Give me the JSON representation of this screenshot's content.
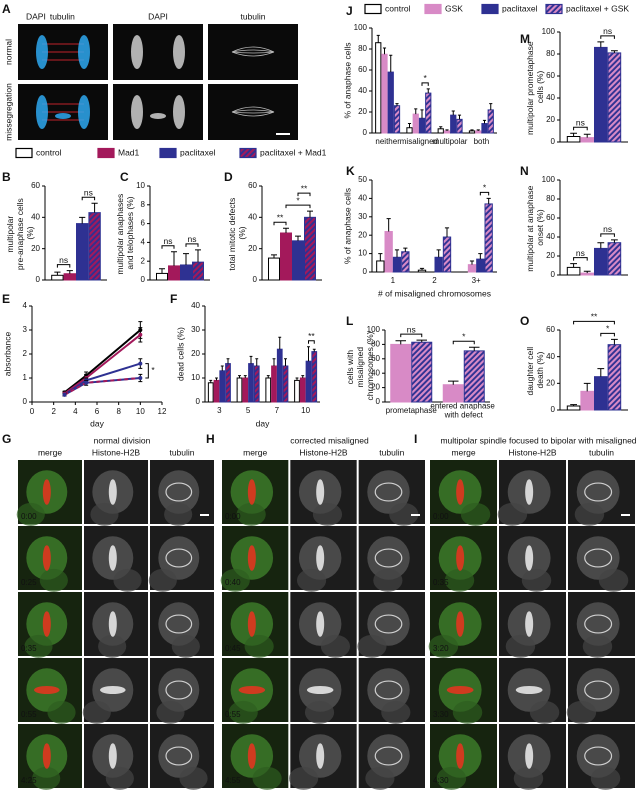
{
  "figure_A": {
    "label": "A",
    "overlay": [
      {
        "text": "DAPI",
        "color": "#2ea8f0"
      },
      {
        "text": "tubulin",
        "color": "#e8202a"
      }
    ],
    "columns": [
      "DAPI",
      "tubulin"
    ],
    "rows": [
      "normal",
      "missegregation"
    ]
  },
  "legend_1": {
    "entries": [
      {
        "name": "control",
        "color": "#ffffff",
        "edge": "#000000"
      },
      {
        "name": "Mad1",
        "color": "#a3195b"
      },
      {
        "name": "paclitaxel",
        "color": "#2e3192"
      },
      {
        "name": "paclitaxel + Mad1",
        "color": "#2e3192",
        "hatch": "#a3195b"
      }
    ]
  },
  "legend_2": {
    "entries": [
      {
        "name": "control",
        "color": "#ffffff",
        "edge": "#000000"
      },
      {
        "name": "GSK",
        "color": "#d88ac6"
      },
      {
        "name": "paclitaxel",
        "color": "#2e3192"
      },
      {
        "name": "paclitaxel + GSK",
        "color": "#2e3192",
        "hatch": "#d88ac6"
      }
    ]
  },
  "chart_data": [
    {
      "label": "B",
      "type": "bar",
      "ylabel": "multipolar pre-anaphase cells (%)",
      "categories": [
        null
      ],
      "ylim": [
        0,
        60
      ],
      "yticks": [
        0,
        20,
        40,
        60
      ],
      "series": [
        {
          "color": "#ffffff",
          "edge": "#000000",
          "values": [
            3
          ],
          "errors": [
            2
          ]
        },
        {
          "color": "#a3195b",
          "values": [
            4
          ],
          "errors": [
            2
          ]
        },
        {
          "color": "#2e3192",
          "values": [
            36
          ],
          "errors": [
            4
          ]
        },
        {
          "color": "#2e3192",
          "hatch": "#a3195b",
          "values": [
            43
          ],
          "errors": [
            6
          ]
        }
      ],
      "brackets": [
        {
          "text": "ns",
          "from": [
            0,
            0
          ],
          "to": [
            0,
            1
          ]
        },
        {
          "text": "ns",
          "from": [
            0,
            2
          ],
          "to": [
            0,
            3
          ]
        }
      ]
    },
    {
      "label": "C",
      "type": "bar",
      "ylabel": "multipolar anaphases and telophases (%)",
      "categories": [
        null
      ],
      "ylim": [
        0,
        10
      ],
      "yticks": [
        0,
        2,
        4,
        6,
        8,
        10
      ],
      "series": [
        {
          "color": "#ffffff",
          "edge": "#000000",
          "values": [
            0.7
          ],
          "errors": [
            0.5
          ]
        },
        {
          "color": "#a3195b",
          "values": [
            1.5
          ],
          "errors": [
            1.5
          ]
        },
        {
          "color": "#2e3192",
          "values": [
            1.6
          ],
          "errors": [
            1.2
          ]
        },
        {
          "color": "#2e3192",
          "hatch": "#a3195b",
          "values": [
            1.9
          ],
          "errors": [
            1.3
          ]
        }
      ],
      "brackets": [
        {
          "text": "ns",
          "from": [
            0,
            0
          ],
          "to": [
            0,
            1
          ]
        },
        {
          "text": "ns",
          "from": [
            0,
            2
          ],
          "to": [
            0,
            3
          ]
        }
      ]
    },
    {
      "label": "D",
      "type": "bar",
      "ylabel": "total mitotic defects (%)",
      "categories": [
        null
      ],
      "ylim": [
        0,
        60
      ],
      "yticks": [
        0,
        20,
        40,
        60
      ],
      "series": [
        {
          "color": "#ffffff",
          "edge": "#000000",
          "values": [
            14
          ],
          "errors": [
            2
          ]
        },
        {
          "color": "#a3195b",
          "values": [
            30
          ],
          "errors": [
            3
          ]
        },
        {
          "color": "#2e3192",
          "values": [
            25
          ],
          "errors": [
            3
          ]
        },
        {
          "color": "#2e3192",
          "hatch": "#a3195b",
          "values": [
            40
          ],
          "errors": [
            4
          ]
        }
      ],
      "brackets": [
        {
          "text": "**",
          "from": [
            0,
            0
          ],
          "to": [
            0,
            1
          ]
        },
        {
          "text": "*",
          "from": [
            0,
            1
          ],
          "to": [
            0,
            3
          ]
        },
        {
          "text": "**",
          "from": [
            0,
            2
          ],
          "to": [
            0,
            3
          ]
        }
      ]
    },
    {
      "label": "E",
      "type": "line",
      "ylabel": "absorbance",
      "xlabel": "day",
      "x": [
        3,
        5,
        10
      ],
      "xlim": [
        0,
        12
      ],
      "xticks": [
        0,
        2,
        4,
        6,
        8,
        10,
        12
      ],
      "ylim": [
        0,
        4
      ],
      "yticks": [
        0,
        1,
        2,
        3,
        4
      ],
      "series": [
        {
          "color": "#000000",
          "values": [
            0.4,
            1.1,
            3.0
          ],
          "errors": [
            0.05,
            0.15,
            0.35
          ]
        },
        {
          "color": "#a3195b",
          "values": [
            0.35,
            1.0,
            2.8
          ],
          "errors": [
            0.05,
            0.15,
            0.3
          ]
        },
        {
          "color": "#2e3192",
          "values": [
            0.3,
            0.9,
            1.6
          ],
          "errors": [
            0.05,
            0.1,
            0.2
          ]
        },
        {
          "color": "#2e3192",
          "hatch": "#a3195b",
          "values": [
            0.3,
            0.8,
            1.0
          ],
          "errors": [
            0.05,
            0.1,
            0.15
          ]
        }
      ],
      "brackets": [
        {
          "text": "*",
          "from": [
            2,
            2
          ],
          "to": [
            2,
            3
          ]
        }
      ]
    },
    {
      "label": "F",
      "type": "bar",
      "ylabel": "dead cells (%)",
      "xlabel": "day",
      "categories": [
        "3",
        "5",
        "7",
        "10"
      ],
      "ylim": [
        0,
        40
      ],
      "yticks": [
        0,
        10,
        20,
        30,
        40
      ],
      "series": [
        {
          "color": "#ffffff",
          "edge": "#000000",
          "values": [
            8,
            10,
            10,
            9
          ],
          "errors": [
            1,
            1,
            1,
            1
          ]
        },
        {
          "color": "#a3195b",
          "values": [
            9,
            10,
            15,
            10
          ],
          "errors": [
            1,
            1,
            3,
            1
          ]
        },
        {
          "color": "#2e3192",
          "values": [
            13,
            16,
            22,
            17
          ],
          "errors": [
            2,
            3,
            5,
            6
          ]
        },
        {
          "color": "#2e3192",
          "hatch": "#a3195b",
          "values": [
            16,
            15,
            15,
            21
          ],
          "errors": [
            2,
            3,
            3,
            1
          ]
        }
      ],
      "brackets": [
        {
          "text": "**",
          "from": [
            3,
            2
          ],
          "to": [
            3,
            3
          ]
        }
      ]
    },
    {
      "label": "J",
      "type": "bar",
      "ylabel": "% of anaphase cells",
      "categories": [
        "neither",
        "misaligned",
        "multipolar",
        "both"
      ],
      "ylim": [
        0,
        100
      ],
      "yticks": [
        0,
        20,
        40,
        60,
        80,
        100
      ],
      "series": [
        {
          "color": "#ffffff",
          "edge": "#000000",
          "values": [
            86,
            5,
            4,
            2
          ],
          "errors": [
            7,
            4,
            2,
            1
          ]
        },
        {
          "color": "#d88ac6",
          "values": [
            75,
            18,
            2,
            2
          ],
          "errors": [
            6,
            5,
            1,
            1
          ]
        },
        {
          "color": "#2e3192",
          "values": [
            58,
            14,
            17,
            9
          ],
          "errors": [
            16,
            8,
            4,
            3
          ]
        },
        {
          "color": "#2e3192",
          "hatch": "#d88ac6",
          "values": [
            26,
            38,
            13,
            22
          ],
          "errors": [
            2,
            4,
            4,
            6
          ]
        }
      ],
      "brackets": [
        {
          "text": "*",
          "from": [
            1,
            2
          ],
          "to": [
            1,
            3
          ]
        }
      ]
    },
    {
      "label": "K",
      "type": "bar",
      "ylabel": "% of anaphase cells",
      "xlabel": "# of misaligned chromosomes",
      "categories": [
        "1",
        "2",
        "3+"
      ],
      "ylim": [
        0,
        50
      ],
      "yticks": [
        0,
        10,
        20,
        30,
        40,
        50
      ],
      "series": [
        {
          "color": "#ffffff",
          "edge": "#000000",
          "values": [
            6,
            1,
            0
          ],
          "errors": [
            4,
            1,
            0
          ]
        },
        {
          "color": "#d88ac6",
          "values": [
            22,
            0,
            4
          ],
          "errors": [
            7,
            0,
            2
          ]
        },
        {
          "color": "#2e3192",
          "values": [
            8,
            8,
            7
          ],
          "errors": [
            4,
            4,
            3
          ]
        },
        {
          "color": "#2e3192",
          "hatch": "#d88ac6",
          "values": [
            11,
            19,
            37
          ],
          "errors": [
            2,
            5,
            3
          ]
        }
      ],
      "brackets": [
        {
          "text": "*",
          "from": [
            2,
            2
          ],
          "to": [
            2,
            3
          ]
        }
      ]
    },
    {
      "label": "L",
      "type": "bar",
      "ylabel": "cells with misaligned chromosomes (%)",
      "categories": [
        "prometaphase",
        "entered anaphase with defect"
      ],
      "ylim": [
        0,
        100
      ],
      "yticks": [
        0,
        20,
        40,
        60,
        80,
        100
      ],
      "series": [
        {
          "color": "#d88ac6",
          "values": [
            80,
            24
          ],
          "errors": [
            5,
            5
          ]
        },
        {
          "color": "#2e3192",
          "hatch": "#d88ac6",
          "values": [
            83,
            71
          ],
          "errors": [
            3,
            5
          ]
        }
      ],
      "brackets": [
        {
          "text": "ns",
          "from": [
            0,
            0
          ],
          "to": [
            0,
            1
          ]
        },
        {
          "text": "*",
          "from": [
            1,
            0
          ],
          "to": [
            1,
            1
          ]
        }
      ]
    },
    {
      "label": "M",
      "type": "bar",
      "ylabel": "multipolar prometaphase cells (%)",
      "categories": [
        null
      ],
      "ylim": [
        0,
        100
      ],
      "yticks": [
        0,
        20,
        40,
        60,
        80,
        100
      ],
      "series": [
        {
          "color": "#ffffff",
          "edge": "#000000",
          "values": [
            5
          ],
          "errors": [
            3
          ]
        },
        {
          "color": "#d88ac6",
          "values": [
            4
          ],
          "errors": [
            3
          ]
        },
        {
          "color": "#2e3192",
          "values": [
            86
          ],
          "errors": [
            5
          ]
        },
        {
          "color": "#2e3192",
          "hatch": "#d88ac6",
          "values": [
            81
          ],
          "errors": [
            2
          ]
        }
      ],
      "brackets": [
        {
          "text": "ns",
          "from": [
            0,
            0
          ],
          "to": [
            0,
            1
          ]
        },
        {
          "text": "ns",
          "from": [
            0,
            2
          ],
          "to": [
            0,
            3
          ]
        }
      ]
    },
    {
      "label": "N",
      "type": "bar",
      "ylabel": "multipolar at anaphase onset (%)",
      "categories": [
        null
      ],
      "ylim": [
        0,
        100
      ],
      "yticks": [
        0,
        20,
        40,
        60,
        80,
        100
      ],
      "series": [
        {
          "color": "#ffffff",
          "edge": "#000000",
          "values": [
            8
          ],
          "errors": [
            4
          ]
        },
        {
          "color": "#d88ac6",
          "values": [
            2
          ],
          "errors": [
            2
          ]
        },
        {
          "color": "#2e3192",
          "values": [
            28
          ],
          "errors": [
            6
          ]
        },
        {
          "color": "#2e3192",
          "hatch": "#d88ac6",
          "values": [
            34
          ],
          "errors": [
            3
          ]
        }
      ],
      "brackets": [
        {
          "text": "ns",
          "from": [
            0,
            0
          ],
          "to": [
            0,
            1
          ]
        },
        {
          "text": "ns",
          "from": [
            0,
            2
          ],
          "to": [
            0,
            3
          ]
        }
      ]
    },
    {
      "label": "O",
      "type": "bar",
      "ylabel": "daughter cell death (%)",
      "categories": [
        null
      ],
      "ylim": [
        0,
        60
      ],
      "yticks": [
        0,
        20,
        40,
        60
      ],
      "series": [
        {
          "color": "#ffffff",
          "edge": "#000000",
          "values": [
            3
          ],
          "errors": [
            1
          ]
        },
        {
          "color": "#d88ac6",
          "values": [
            14
          ],
          "errors": [
            6
          ]
        },
        {
          "color": "#2e3192",
          "values": [
            25
          ],
          "errors": [
            6
          ]
        },
        {
          "color": "#2e3192",
          "hatch": "#d88ac6",
          "values": [
            49
          ],
          "errors": [
            4
          ]
        }
      ],
      "brackets": [
        {
          "text": "*",
          "from": [
            0,
            2
          ],
          "to": [
            0,
            3
          ]
        },
        {
          "text": "**",
          "from": [
            0,
            0
          ],
          "to": [
            0,
            3
          ]
        }
      ]
    }
  ],
  "movies": [
    {
      "label": "G",
      "title": "normal division",
      "columns": [
        "merge",
        "Histone-H2B",
        "tubulin"
      ],
      "column_colors": [
        "#000000",
        "#e0201c",
        "#2ca02c"
      ],
      "times": [
        "0:00",
        "0:25",
        "0:35",
        "0:55",
        "4:25"
      ]
    },
    {
      "label": "H",
      "title": "corrected misaligned",
      "columns": [
        "merge",
        "Histone-H2B",
        "tubulin"
      ],
      "column_colors": [
        "#000000",
        "#e0201c",
        "#2ca02c"
      ],
      "times": [
        "0:00",
        "0:40",
        "0:45",
        "0:55",
        "4:55"
      ]
    },
    {
      "label": "I",
      "title": "multipolar spindle focused to bipolar with misaligned",
      "columns": [
        "merge",
        "Histone-H2B",
        "tubulin"
      ],
      "column_colors": [
        "#000000",
        "#e0201c",
        "#2ca02c"
      ],
      "times": [
        "0:00",
        "0:35",
        "3:20",
        "3:30",
        "4:30"
      ]
    }
  ]
}
